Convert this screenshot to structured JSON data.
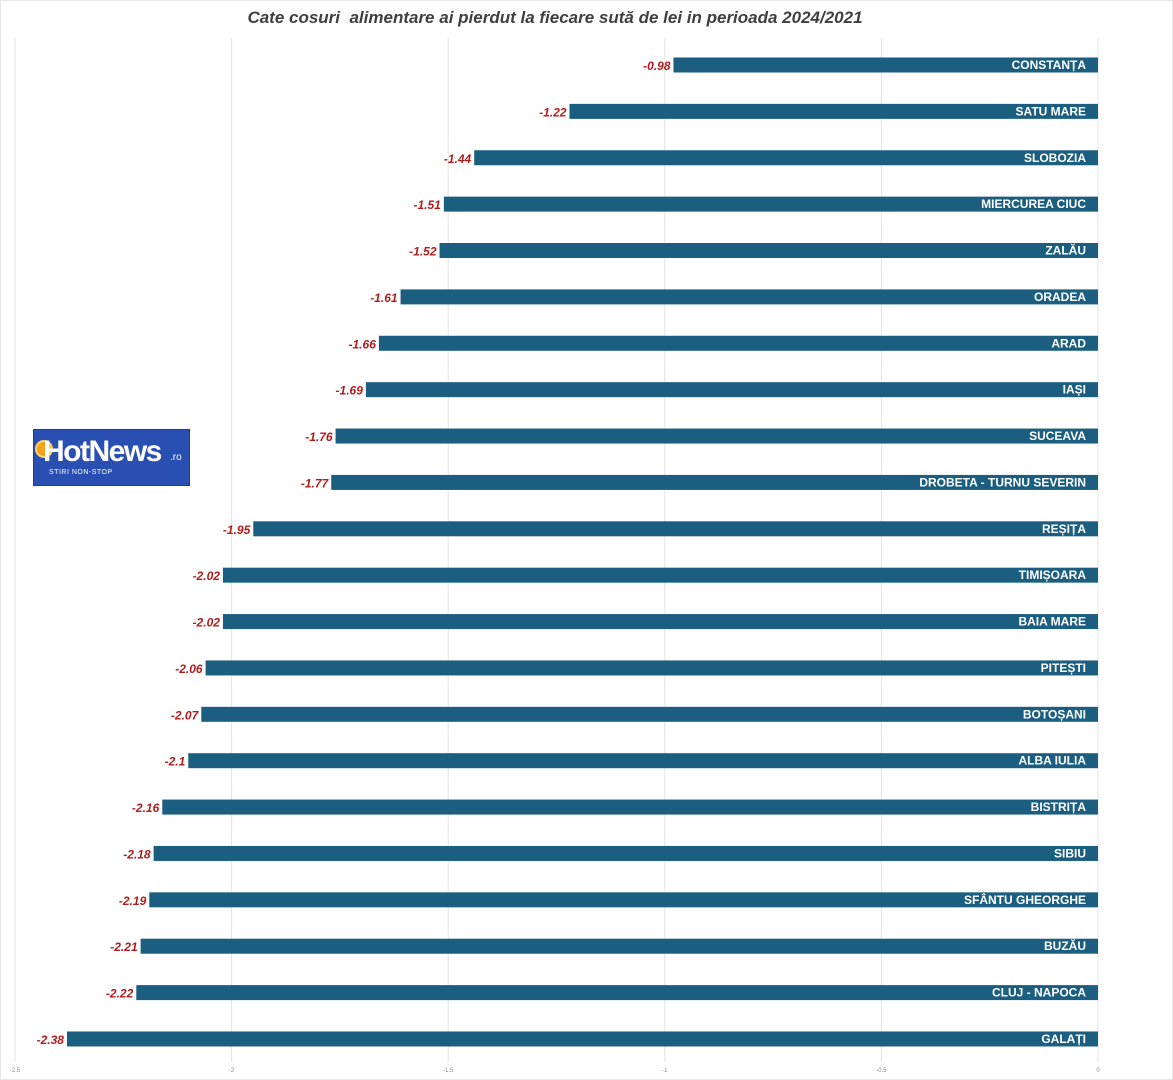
{
  "title": "Cate cosuri  alimentare ai pierdut la fiecare sută de lei in perioada 2024/2021",
  "logo": {
    "brand": "HotNews",
    "suffix": ".ro",
    "tagline": "STIRI NON-STOP"
  },
  "colors": {
    "bar": "#1b5e80",
    "value_label": "#b01c1c",
    "category_label": "#ffffff",
    "logo_bg": "#2a4fb3"
  },
  "chart_data": {
    "type": "bar",
    "orientation": "horizontal",
    "title": "Cate cosuri  alimentare ai pierdut la fiecare sută de lei in perioada 2024/2021",
    "xlabel": "",
    "ylabel": "",
    "xlim": [
      -2.5,
      0
    ],
    "xticks": [
      -2.5,
      -2,
      -1.5,
      -1,
      -0.5,
      0
    ],
    "xtick_labels": [
      "-2.5",
      "-2",
      "-1.5",
      "-1",
      "-0.5",
      "0"
    ],
    "grid": true,
    "legend": "none",
    "categories": [
      "CONSTANȚA",
      "SATU MARE",
      "SLOBOZIA",
      "MIERCUREA CIUC",
      "ZALĂU",
      "ORADEA",
      "ARAD",
      "IAȘI",
      "SUCEAVA",
      "DROBETA - TURNU  SEVERIN",
      "REȘIȚA",
      "TIMIȘOARA",
      "BAIA MARE",
      "PITEȘTI",
      "BOTOȘANI",
      "ALBA IULIA",
      "BISTRIȚA",
      "SIBIU",
      "SFÂNTU GHEORGHE",
      "BUZĂU",
      "CLUJ - NAPOCA",
      "GALAȚI"
    ],
    "values": [
      -0.98,
      -1.22,
      -1.44,
      -1.51,
      -1.52,
      -1.61,
      -1.66,
      -1.69,
      -1.76,
      -1.77,
      -1.95,
      -2.02,
      -2.02,
      -2.06,
      -2.07,
      -2.1,
      -2.16,
      -2.18,
      -2.19,
      -2.21,
      -2.22,
      -2.38
    ],
    "value_labels": [
      "-0.98",
      "-1.22",
      "-1.44",
      "-1.51",
      "-1.52",
      "-1.61",
      "-1.66",
      "-1.69",
      "-1.76",
      "-1.77",
      "-1.95",
      "-2.02",
      "-2.02",
      "-2.06",
      "-2.07",
      "-2.1",
      "-2.16",
      "-2.18",
      "-2.19",
      "-2.21",
      "-2.22",
      "-2.38"
    ]
  }
}
